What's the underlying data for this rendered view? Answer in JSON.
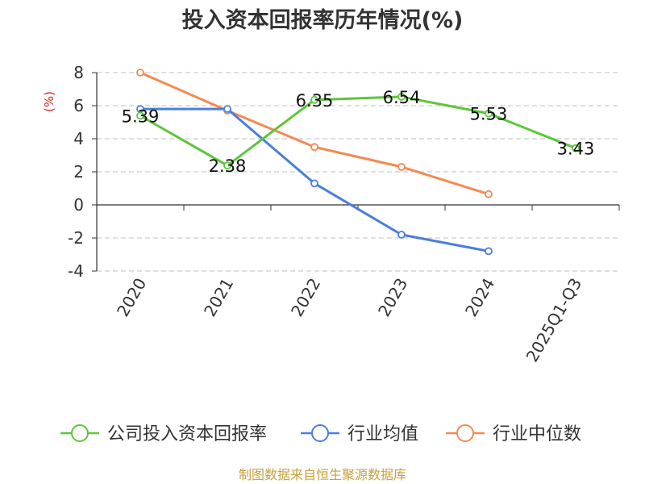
{
  "chart_data": {
    "type": "line",
    "title": "投入资本回报率历年情况(%)",
    "ylabel": "(%)",
    "categories": [
      "2020",
      "2021",
      "2022",
      "2023",
      "2024",
      "2025Q1-Q3"
    ],
    "y_ticks": [
      8,
      6,
      4,
      2,
      0,
      -2,
      -4
    ],
    "ylim": [
      -4,
      8
    ],
    "grid": true,
    "legend_position": "bottom",
    "series": [
      {
        "name": "公司投入资本回报率",
        "color": "#5dc63a",
        "values": [
          5.39,
          2.38,
          6.35,
          6.54,
          5.53,
          3.43
        ],
        "labels": [
          "5.39",
          "2.38",
          "6.35",
          "6.54",
          "5.53",
          "3.43"
        ]
      },
      {
        "name": "行业均值",
        "color": "#4a7fdb",
        "values": [
          5.8,
          5.8,
          1.3,
          -1.8,
          -2.8,
          null
        ]
      },
      {
        "name": "行业中位数",
        "color": "#f48a52",
        "values": [
          8.0,
          5.7,
          3.5,
          2.3,
          0.65,
          null
        ]
      }
    ]
  },
  "source": {
    "text": "制图数据来自恒生聚源数据库",
    "color": "#c8a03c"
  },
  "colors": {
    "axis": "#333333",
    "grid": "#cccccc",
    "ylabel": "#e02020"
  }
}
